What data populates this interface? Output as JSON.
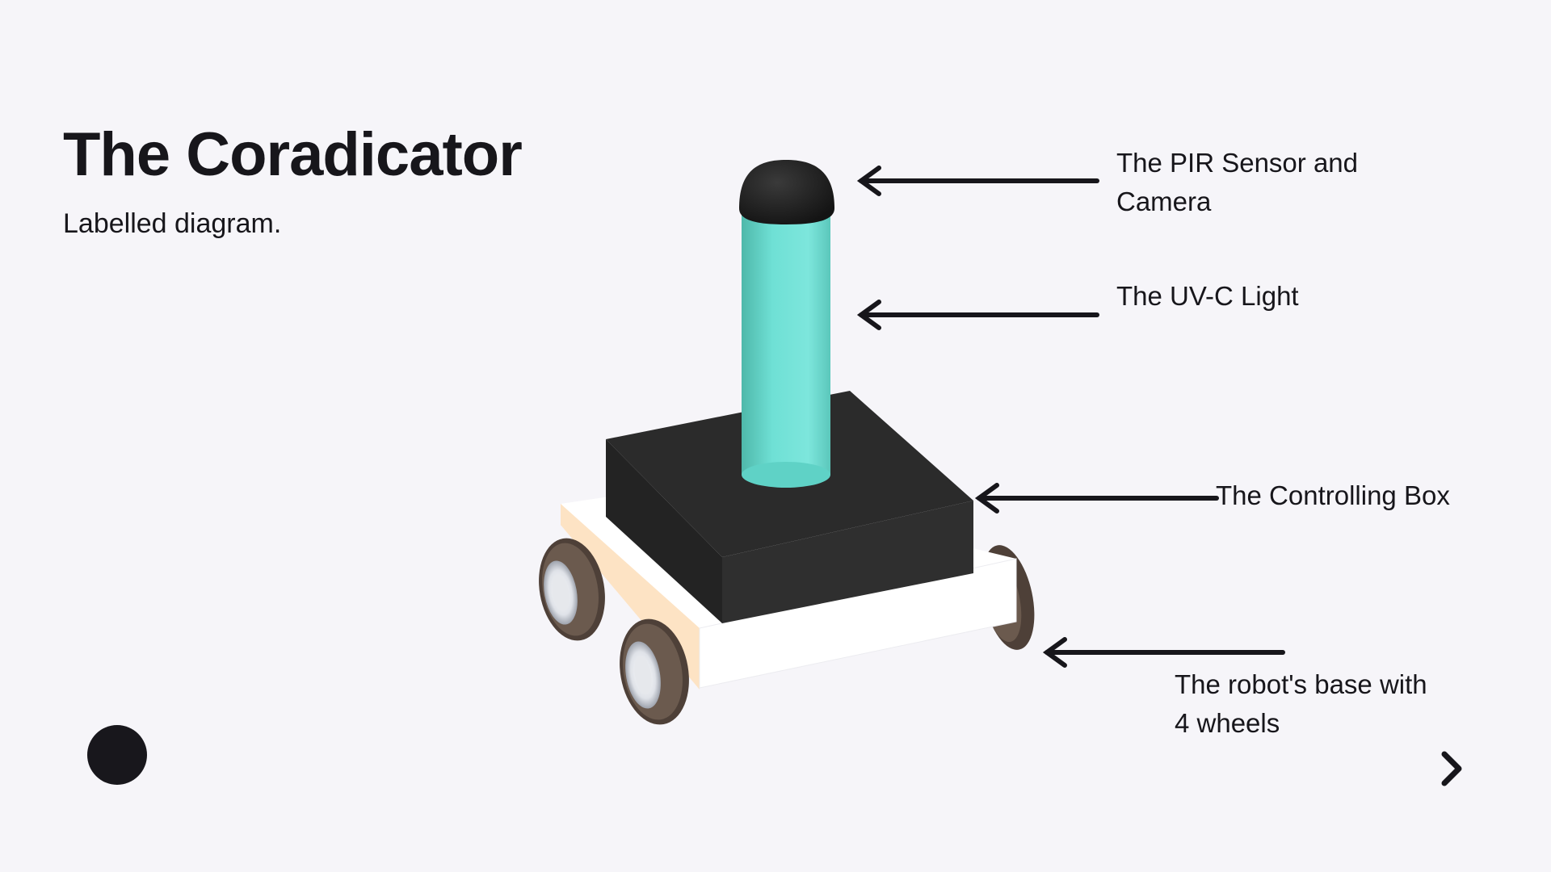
{
  "slide": {
    "title": "The Coradicator",
    "subtitle": "Labelled diagram."
  },
  "labels": {
    "pir_line1": "The PIR Sensor and",
    "pir_line2": "Camera",
    "uvc": "The UV-C Light",
    "box": "The Controlling Box",
    "base_line1": "The robot's base with",
    "base_line2": "4 wheels"
  },
  "navigation": {
    "next_icon": "chevron-right-icon",
    "dot_icon": "filled-circle-icon"
  },
  "colors": {
    "background": "#f6f5f9",
    "text": "#17161b",
    "uv_light": "#6fe0d5",
    "control_box": "#2a2a2a",
    "base": "#ffffff",
    "base_side": "#fde3c4",
    "tire": "#5a4a40"
  }
}
